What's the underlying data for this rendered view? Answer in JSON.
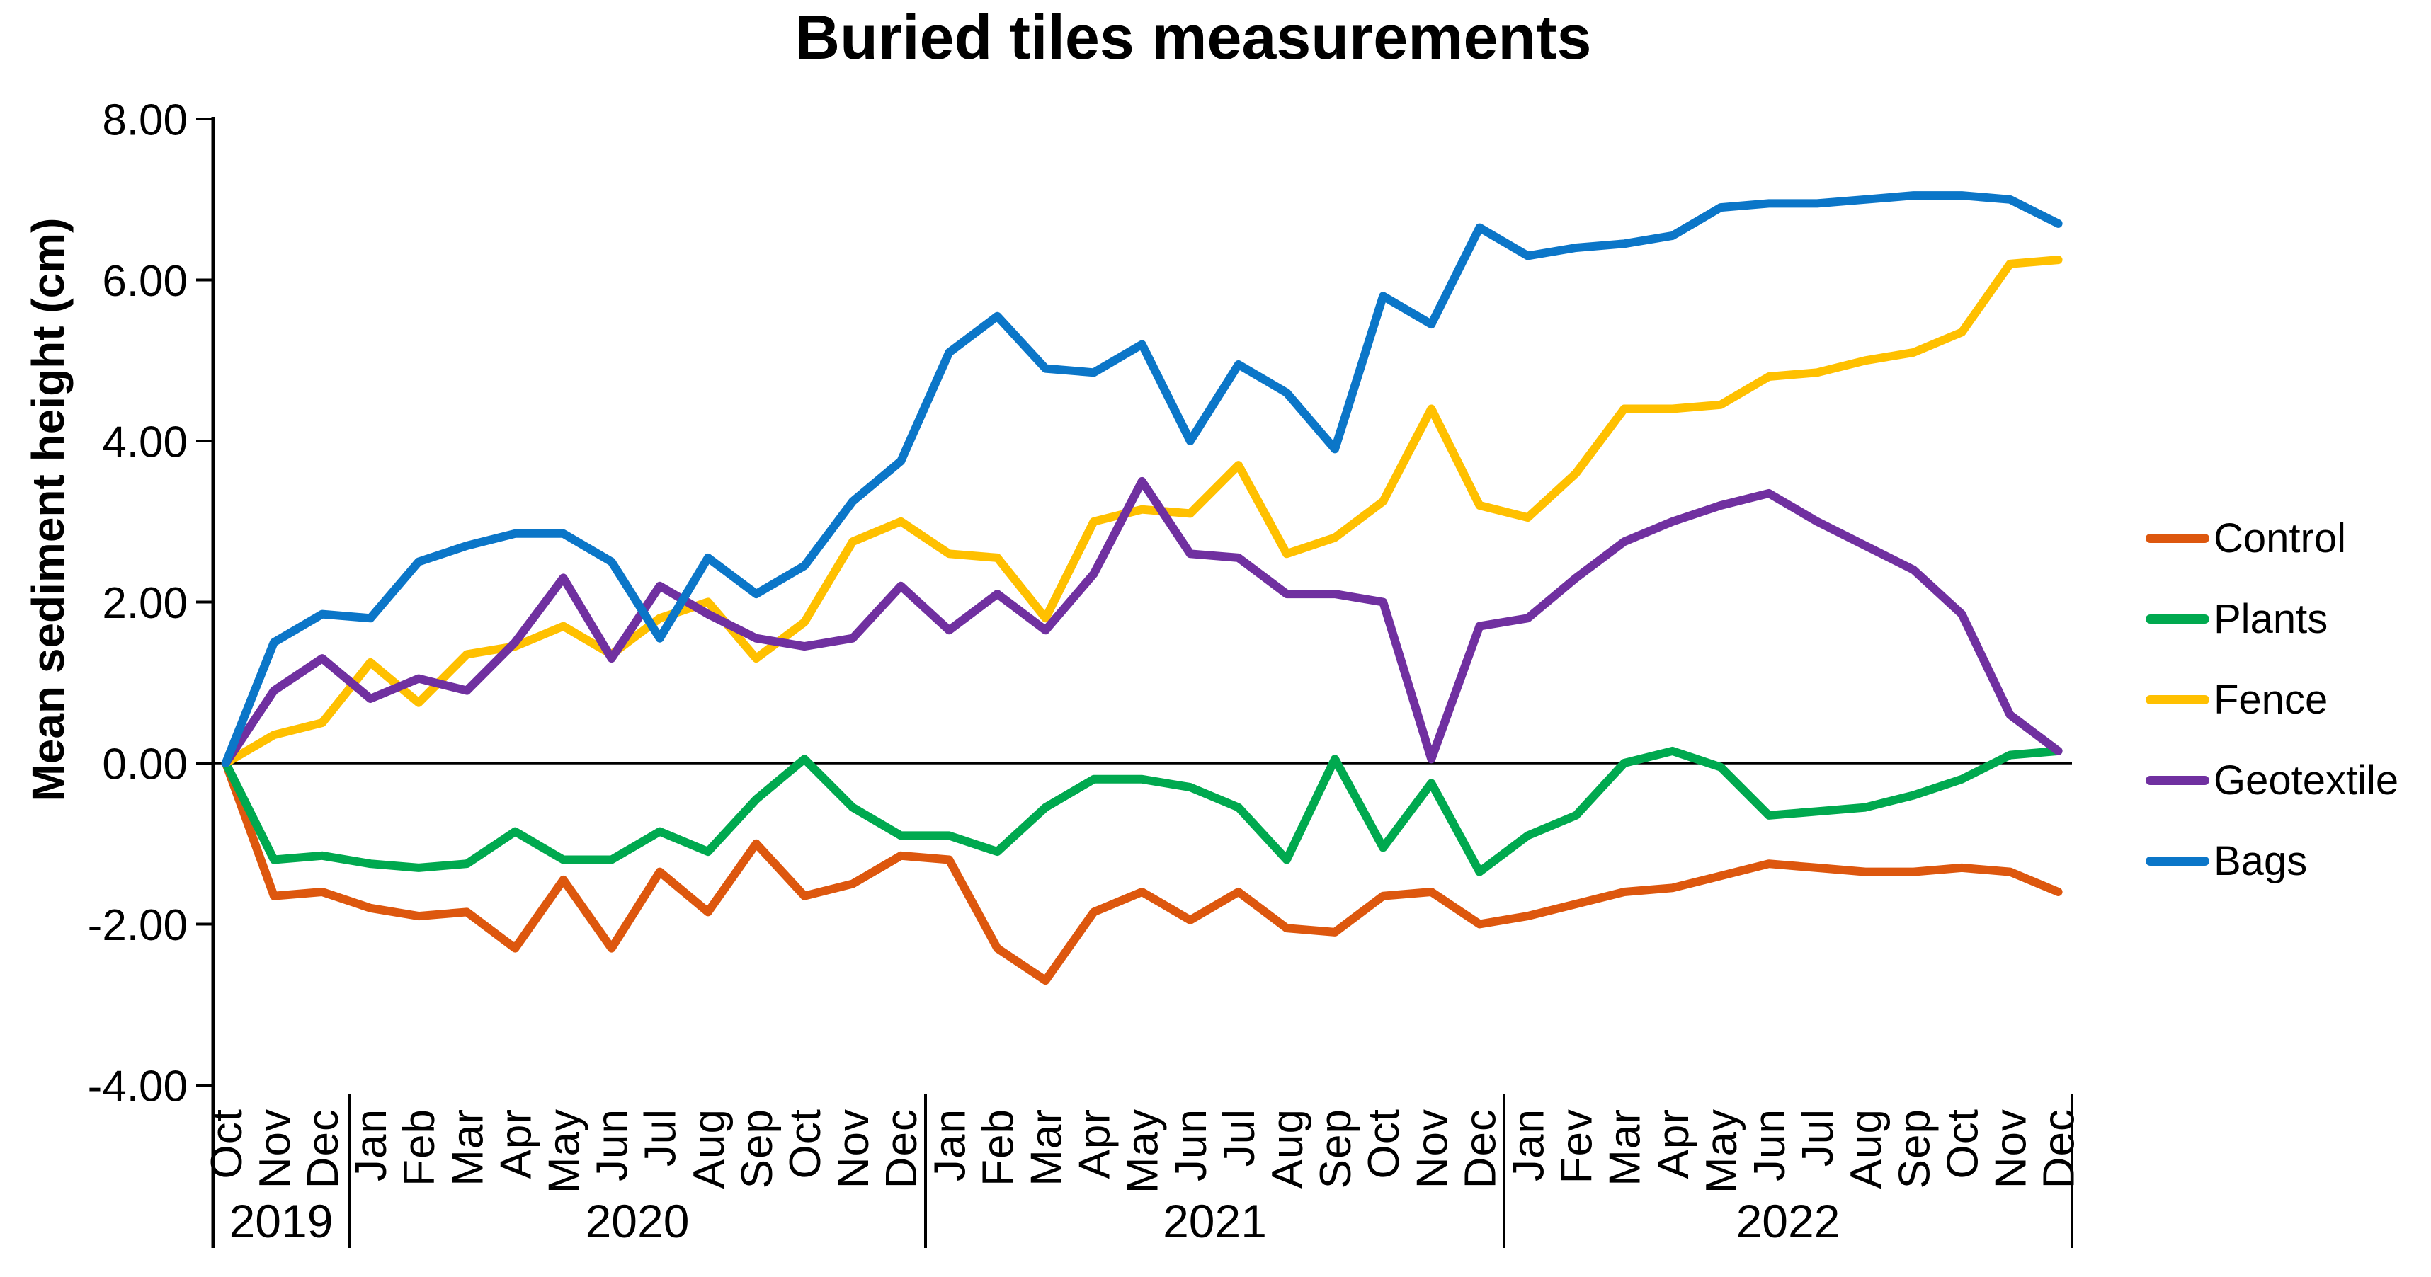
{
  "title": "Buried tiles measurements",
  "y_axis": {
    "label": "Mean sediment height (cm)",
    "tick_labels": [
      "8.00",
      "6.00",
      "4.00",
      "2.00",
      "0.00",
      "-2.00",
      "-4.00"
    ]
  },
  "x_axis": {
    "year_labels": [
      "2019",
      "2020",
      "2021",
      "2022"
    ],
    "months_per_year": [
      3,
      12,
      12,
      12
    ]
  },
  "legend": {
    "items": [
      {
        "label": "Control",
        "color": "#DD570E"
      },
      {
        "label": "Plants",
        "color": "#00A94F"
      },
      {
        "label": "Fence",
        "color": "#FFC000"
      },
      {
        "label": "Geotextile",
        "color": "#7030A0"
      },
      {
        "label": "Bags",
        "color": "#0B76C8"
      }
    ]
  },
  "chart_data": {
    "type": "line",
    "title": "Buried tiles measurements",
    "xlabel": "",
    "ylabel": "Mean sediment height (cm)",
    "ylim": [
      -4,
      8
    ],
    "yticks": [
      8,
      6,
      4,
      2,
      0,
      -2,
      -4
    ],
    "grid": false,
    "legend_position": "right",
    "month_labels": [
      "Oct",
      "Nov",
      "Dec",
      "Jan",
      "Feb",
      "Mar",
      "Apr",
      "May",
      "Jun",
      "Jul",
      "Aug",
      "Sep",
      "Oct",
      "Nov",
      "Dec",
      "Jan",
      "Feb",
      "Mar",
      "Apr",
      "May",
      "Jun",
      "Jul",
      "Aug",
      "Sep",
      "Oct",
      "Nov",
      "Dec",
      "Jan",
      "Fev",
      "Mar",
      "Apr",
      "May",
      "Jun",
      "Jul",
      "Aug",
      "Sep",
      "Oct",
      "Nov",
      "Dec"
    ],
    "categories": [
      "Oct 2019",
      "Nov 2019",
      "Dec 2019",
      "Jan 2020",
      "Feb 2020",
      "Mar 2020",
      "Apr 2020",
      "May 2020",
      "Jun 2020",
      "Jul 2020",
      "Aug 2020",
      "Sep 2020",
      "Oct 2020",
      "Nov 2020",
      "Dec 2020",
      "Jan 2021",
      "Feb 2021",
      "Mar 2021",
      "Apr 2021",
      "May 2021",
      "Jun 2021",
      "Jul 2021",
      "Aug 2021",
      "Sep 2021",
      "Oct 2021",
      "Nov 2021",
      "Dec 2021",
      "Jan 2022",
      "Fev 2022",
      "Mar 2022",
      "Apr 2022",
      "May 2022",
      "Jun 2022",
      "Jul 2022",
      "Aug 2022",
      "Sep 2022",
      "Oct 2022",
      "Nov 2022",
      "Dec 2022"
    ],
    "series": [
      {
        "name": "Control",
        "color": "#DD570E",
        "values": [
          0.0,
          -1.65,
          -1.6,
          -1.8,
          -1.9,
          -1.85,
          -2.3,
          -1.45,
          -2.3,
          -1.35,
          -1.85,
          -1.0,
          -1.65,
          -1.5,
          -1.15,
          -1.2,
          -2.3,
          -2.7,
          -1.85,
          -1.6,
          -1.95,
          -1.6,
          -2.05,
          -2.1,
          -1.65,
          -1.6,
          -2.0,
          -1.9,
          -1.75,
          -1.6,
          -1.55,
          -1.4,
          -1.25,
          -1.3,
          -1.35,
          -1.35,
          -1.3,
          -1.35,
          -1.6
        ]
      },
      {
        "name": "Plants",
        "color": "#00A94F",
        "values": [
          0.0,
          -1.2,
          -1.15,
          -1.25,
          -1.3,
          -1.25,
          -0.85,
          -1.2,
          -1.2,
          -0.85,
          -1.1,
          -0.45,
          0.05,
          -0.55,
          -0.9,
          -0.9,
          -1.1,
          -0.55,
          -0.2,
          -0.2,
          -0.3,
          -0.55,
          -1.2,
          0.05,
          -1.05,
          -0.25,
          -1.35,
          -0.9,
          -0.65,
          0.0,
          0.15,
          -0.05,
          -0.65,
          -0.6,
          -0.55,
          -0.4,
          -0.2,
          0.1,
          0.15
        ]
      },
      {
        "name": "Fence",
        "color": "#FFC000",
        "values": [
          0.0,
          0.35,
          0.5,
          1.25,
          0.75,
          1.35,
          1.45,
          1.7,
          1.35,
          1.8,
          2.0,
          1.3,
          1.75,
          2.75,
          3.0,
          2.6,
          2.55,
          1.8,
          3.0,
          3.15,
          3.1,
          3.7,
          2.6,
          2.8,
          3.25,
          4.4,
          3.2,
          3.05,
          3.6,
          4.4,
          4.4,
          4.45,
          4.8,
          4.85,
          5.0,
          5.1,
          5.35,
          6.2,
          6.25
        ]
      },
      {
        "name": "Geotextile",
        "color": "#7030A0",
        "values": [
          0.0,
          0.9,
          1.3,
          0.8,
          1.05,
          0.9,
          1.5,
          2.3,
          1.3,
          2.2,
          1.85,
          1.55,
          1.45,
          1.55,
          2.2,
          1.65,
          2.1,
          1.65,
          2.35,
          3.5,
          2.6,
          2.55,
          2.1,
          2.1,
          2.0,
          0.05,
          1.7,
          1.8,
          2.3,
          2.75,
          3.0,
          3.2,
          3.35,
          3.0,
          2.7,
          2.4,
          1.85,
          0.6,
          0.15
        ]
      },
      {
        "name": "Bags",
        "color": "#0B76C8",
        "values": [
          0.0,
          1.5,
          1.85,
          1.8,
          2.5,
          2.7,
          2.85,
          2.85,
          2.5,
          1.55,
          2.55,
          2.1,
          2.45,
          3.25,
          3.75,
          5.1,
          5.55,
          4.9,
          4.85,
          5.2,
          4.0,
          4.95,
          4.6,
          3.9,
          5.8,
          5.45,
          6.65,
          6.3,
          6.4,
          6.45,
          6.55,
          6.9,
          6.95,
          6.95,
          7.0,
          7.05,
          7.05,
          7.0,
          6.7
        ]
      }
    ]
  }
}
